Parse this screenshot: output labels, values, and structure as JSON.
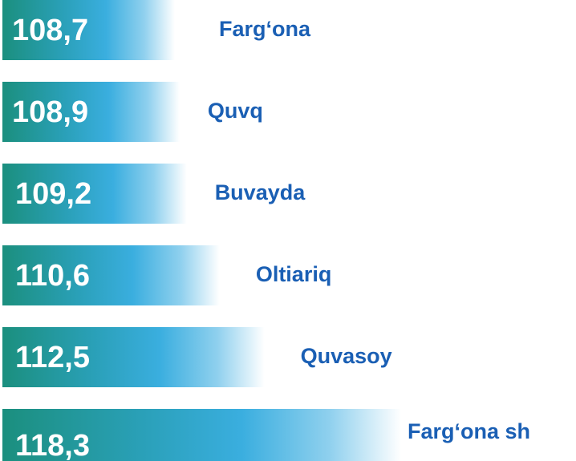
{
  "chart_data": {
    "type": "bar",
    "categories": [
      "Farg‘ona",
      "Quvq",
      "Buvayda",
      "Oltiariq",
      "Quvasoy",
      "Farg‘ona sh"
    ],
    "values": [
      108.7,
      108.9,
      109.2,
      110.6,
      112.5,
      118.3
    ],
    "value_labels": [
      "108,7",
      "108,9",
      "109,2",
      "110,6",
      "112,5",
      "118,3"
    ],
    "color": "#35a9d8",
    "label_color": "#1a5fb4"
  }
}
